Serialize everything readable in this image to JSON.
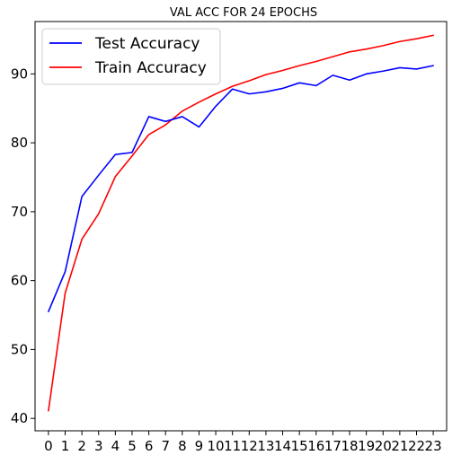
{
  "chart_data": {
    "type": "line",
    "title": "VAL ACC FOR 24 EPOCHS",
    "xlabel": "",
    "ylabel": "",
    "x": [
      0,
      1,
      2,
      3,
      4,
      5,
      6,
      7,
      8,
      9,
      10,
      11,
      12,
      13,
      14,
      15,
      16,
      17,
      18,
      19,
      20,
      21,
      22,
      23
    ],
    "xlim": [
      -0.8,
      23.8
    ],
    "ylim": [
      38.2,
      97.6
    ],
    "yticks": [
      40,
      50,
      60,
      70,
      80,
      90
    ],
    "grid": false,
    "legend_position": "top-left",
    "series": [
      {
        "name": "Test Accuracy",
        "color": "#0000ff",
        "values": [
          55.5,
          61.3,
          72.2,
          75.3,
          78.3,
          78.6,
          83.8,
          83.1,
          83.8,
          82.3,
          85.3,
          87.8,
          87.1,
          87.4,
          87.9,
          88.7,
          88.3,
          89.8,
          89.1,
          90.0,
          90.4,
          90.9,
          90.7,
          91.2
        ]
      },
      {
        "name": "Train Accuracy",
        "color": "#ff0000",
        "values": [
          41.1,
          58.2,
          66.0,
          69.7,
          75.1,
          78.1,
          81.2,
          82.6,
          84.6,
          85.9,
          87.1,
          88.2,
          89.0,
          89.9,
          90.5,
          91.2,
          91.8,
          92.5,
          93.2,
          93.6,
          94.1,
          94.7,
          95.1,
          95.6
        ]
      }
    ]
  }
}
